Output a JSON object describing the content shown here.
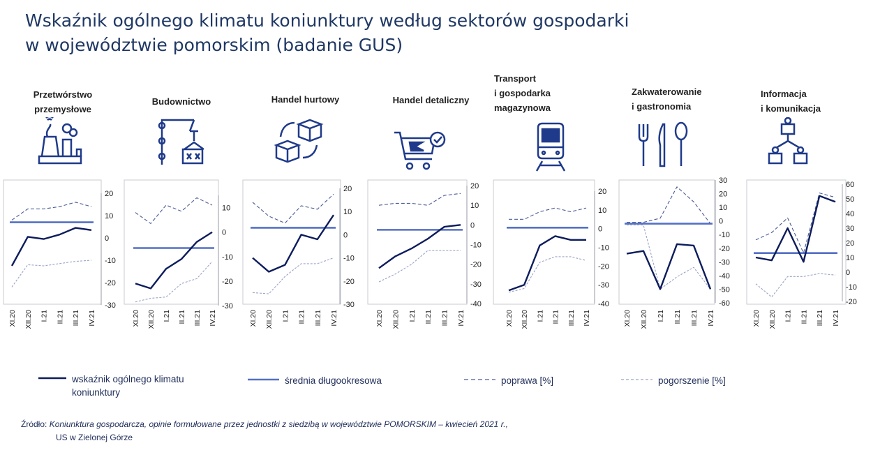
{
  "title": {
    "line1": "Wskaźnik ogólnego klimatu koniunktury według sektorów gospodarki",
    "line2": "w województwie pomorskim (badanie GUS)"
  },
  "legend": {
    "main": "wskaźnik ogólnego klimatu\nkoniunktury",
    "avg": "średnia długookresowa",
    "up": "poprawa [%]",
    "down": "pogorszenie [%]"
  },
  "source": {
    "prefix": "Źródło:",
    "body": "Koniunktura gospodarcza, opinie formułowane przez jednostki z siedzibą w województwie POMORSKIM – kwiecień 2021 r.,",
    "line2": "US w Zielonej Górze"
  },
  "colors": {
    "main": "#0c1c5c",
    "avg": "#5470c6",
    "up": "#4a5c96",
    "down": "#9aa3c6",
    "frame": "#c9cbd2"
  },
  "chart_data": [
    {
      "type": "line",
      "header": "Przetwórstwo\nprzemysłowe",
      "icon": "factory-icon",
      "x": [
        "XI.20",
        "XII.20",
        "I.21",
        "II.21",
        "III.21",
        "IV.21"
      ],
      "ylim": [
        -30,
        20
      ],
      "yticks": [
        -30,
        -20,
        -10,
        0,
        10,
        20
      ],
      "average": 7,
      "series": [
        {
          "key": "main",
          "values": [
            -12.5,
            0.5,
            -0.5,
            1.5,
            4.5,
            3.5
          ]
        },
        {
          "key": "up",
          "values": [
            8,
            13,
            13,
            14,
            16,
            14
          ]
        },
        {
          "key": "down",
          "values": [
            -22,
            -12,
            -12.5,
            -11.5,
            -10.5,
            -10
          ]
        }
      ]
    },
    {
      "type": "line",
      "header": "Budownictwo",
      "icon": "crane-icon",
      "x": [
        "XI.20",
        "XII.20",
        "I.21",
        "II.21",
        "III.21",
        "IV.21"
      ],
      "ylim": [
        -30,
        15
      ],
      "yticks": [
        -30,
        -20,
        -10,
        0,
        10
      ],
      "average": -6.5,
      "series": [
        {
          "key": "main",
          "values": [
            -21,
            -23,
            -15,
            -11,
            -4,
            0
          ]
        },
        {
          "key": "up",
          "values": [
            8,
            3.5,
            11,
            8.5,
            14,
            11
          ]
        },
        {
          "key": "down",
          "values": [
            -28.5,
            -27,
            -26.5,
            -21,
            -19,
            -12
          ]
        }
      ]
    },
    {
      "type": "line",
      "header": "Handel hurtowy",
      "icon": "wholesale-boxes-icon",
      "x": [
        "XI.20",
        "XII.20",
        "I.21",
        "II.21",
        "III.21",
        "IV.21"
      ],
      "ylim": [
        -30,
        20
      ],
      "yticks": [
        -30,
        -20,
        -10,
        0,
        10,
        20
      ],
      "average": 3,
      "series": [
        {
          "key": "main",
          "values": [
            -10,
            -16,
            -13,
            0,
            -2,
            8.5
          ]
        },
        {
          "key": "up",
          "values": [
            14,
            8,
            5,
            12.5,
            11,
            17.5
          ]
        },
        {
          "key": "down",
          "values": [
            -25,
            -25.5,
            -18,
            -12.5,
            -12.5,
            -10
          ]
        }
      ]
    },
    {
      "type": "line",
      "header": "Handel detaliczny",
      "icon": "shopping-cart-icon",
      "x": [
        "XI.20",
        "XII.20",
        "I.21",
        "II.21",
        "III.21",
        "IV.21"
      ],
      "ylim": [
        -40,
        20
      ],
      "yticks": [
        -40,
        -30,
        -20,
        -10,
        0,
        10,
        20
      ],
      "average": -2.5,
      "series": [
        {
          "key": "main",
          "values": [
            -22,
            -16,
            -12,
            -7,
            -1,
            0
          ]
        },
        {
          "key": "up",
          "values": [
            10,
            11,
            11,
            10,
            15,
            16
          ]
        },
        {
          "key": "down",
          "values": [
            -29,
            -25,
            -20,
            -13,
            -13,
            -13
          ]
        }
      ]
    },
    {
      "type": "line",
      "header": "Transport\ni gospodarka\nmagazynowa",
      "icon": "train-icon",
      "x": [
        "XI.20",
        "XII.20",
        "I.21",
        "II.21",
        "III.21",
        "IV.21"
      ],
      "ylim": [
        -40,
        20
      ],
      "yticks": [
        -40,
        -30,
        -20,
        -10,
        0,
        10,
        20
      ],
      "average": 0.5,
      "series": [
        {
          "key": "main",
          "values": [
            -33,
            -30,
            -9,
            -4,
            -6,
            -6
          ]
        },
        {
          "key": "up",
          "values": [
            5,
            5,
            9,
            11,
            9,
            11
          ]
        },
        {
          "key": "down",
          "values": [
            -34,
            -32,
            -18,
            -15,
            -15,
            -17
          ]
        }
      ]
    },
    {
      "type": "line",
      "header": "Zakwaterowanie\ni gastronomia",
      "icon": "cutlery-icon",
      "x": [
        "XI.20",
        "XII.20",
        "I.21",
        "II.21",
        "III.21",
        "IV.21"
      ],
      "ylim": [
        -60,
        30
      ],
      "yticks": [
        -60,
        -50,
        -40,
        -30,
        -20,
        -10,
        0,
        10,
        20,
        30
      ],
      "average": -2,
      "series": [
        {
          "key": "main",
          "values": [
            -24,
            -22,
            -50,
            -17,
            -18,
            -50
          ]
        },
        {
          "key": "up",
          "values": [
            -1,
            -1,
            2,
            25,
            14,
            -2
          ]
        },
        {
          "key": "down",
          "values": [
            -3,
            -3,
            -50,
            -41,
            -34,
            -50
          ]
        }
      ]
    },
    {
      "type": "line",
      "header": "Informacja\ni komunikacja",
      "icon": "network-people-icon",
      "x": [
        "XI.20",
        "XII.20",
        "I.21",
        "II.21",
        "III.21",
        "IV.21"
      ],
      "ylim": [
        -20,
        60
      ],
      "yticks": [
        -20,
        -10,
        0,
        10,
        20,
        30,
        40,
        50,
        60
      ],
      "average": 13,
      "series": [
        {
          "key": "main",
          "values": [
            10,
            8,
            30,
            7,
            52,
            48
          ]
        },
        {
          "key": "up",
          "values": [
            22,
            27,
            37,
            13,
            54,
            51
          ]
        },
        {
          "key": "down",
          "values": [
            -8,
            -17,
            -3,
            -3,
            -1,
            -2
          ]
        }
      ]
    }
  ]
}
